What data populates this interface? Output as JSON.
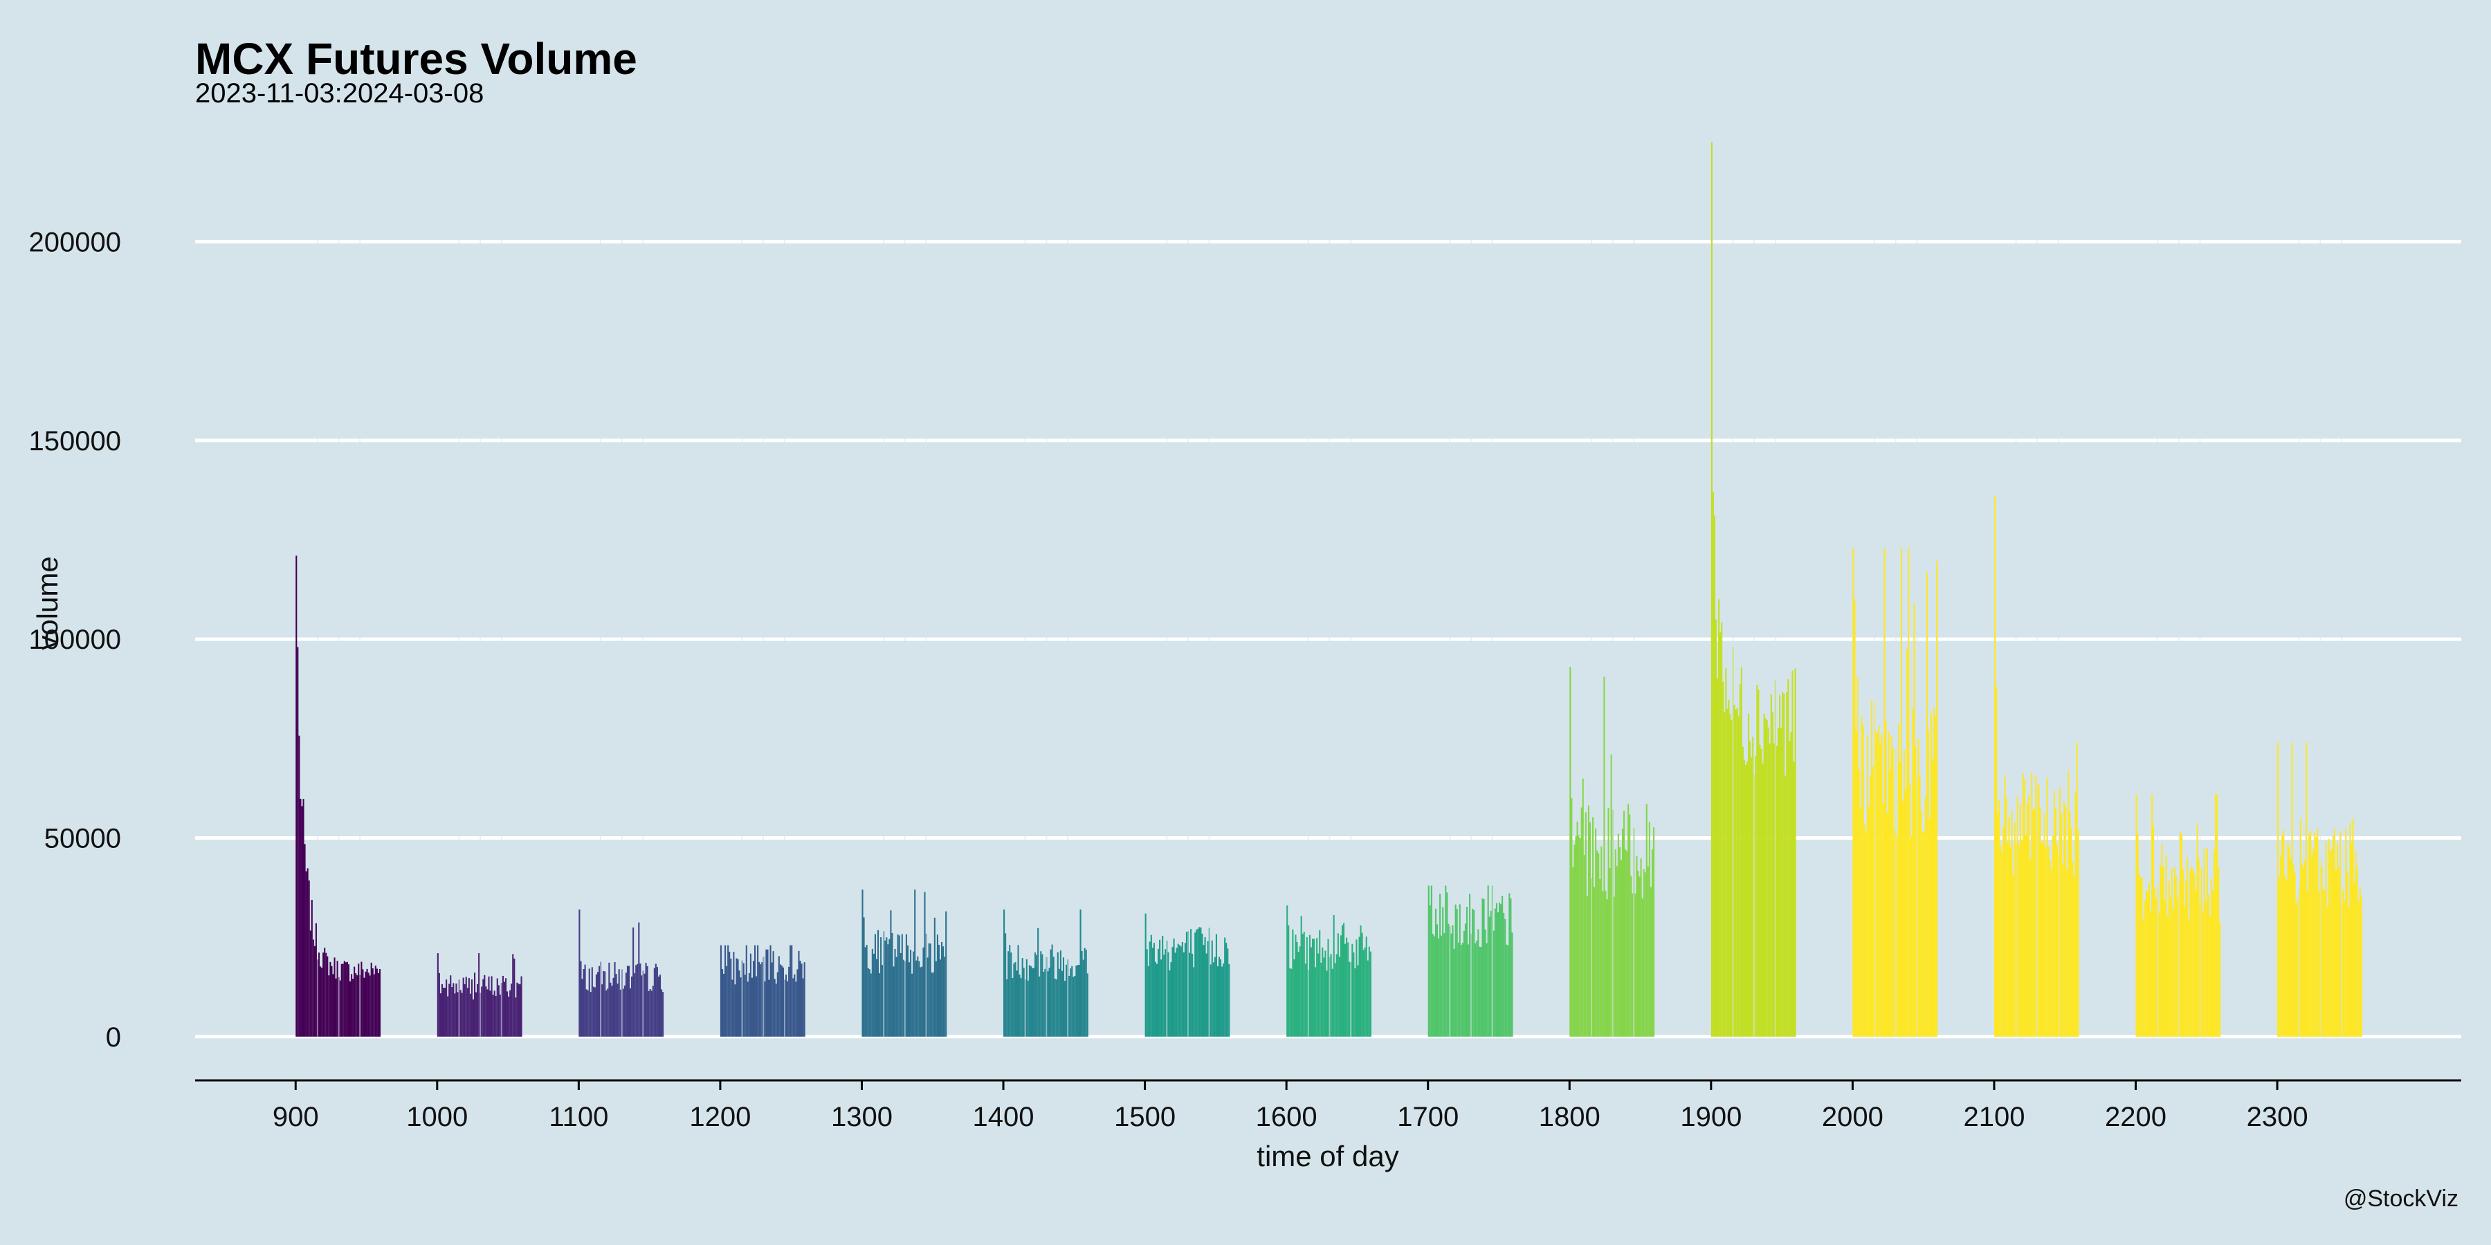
{
  "chart_data": {
    "type": "bar",
    "title": "MCX Futures Volume",
    "subtitle": "2023-11-03:2024-03-08",
    "xlabel": "time of day",
    "ylabel": "volume",
    "caption": "@StockViz",
    "ylim": [
      -11000,
      226000
    ],
    "xlim": [
      829,
      2430
    ],
    "yticks": [
      0,
      50000,
      100000,
      150000,
      200000
    ],
    "xticks": [
      900,
      1000,
      1100,
      1200,
      1300,
      1400,
      1500,
      1600,
      1700,
      1800,
      1900,
      2000,
      2100,
      2200,
      2300
    ],
    "grid": "horizontal",
    "legend": "none",
    "colors": [
      "#440154",
      "#482173",
      "#433e85",
      "#38588c",
      "#2d708e",
      "#25858e",
      "#1e9b8a",
      "#2ab07f",
      "#51c56a",
      "#85d54a",
      "#c2df23",
      "#fde725"
    ],
    "gap_color": "#d5e4eb",
    "sessions": [
      {
        "start": 900,
        "mean": 17000,
        "peak": 121000,
        "second": 98000,
        "decay": true
      },
      {
        "start": 1000,
        "mean": 13000,
        "peak": 21000,
        "second": 16000
      },
      {
        "start": 1100,
        "mean": 15500,
        "peak": 32000,
        "second": 19000
      },
      {
        "start": 1200,
        "mean": 18000,
        "peak": 23000,
        "second": 17000
      },
      {
        "start": 1300,
        "mean": 22000,
        "peak": 37000,
        "second": 30000
      },
      {
        "start": 1400,
        "mean": 19500,
        "peak": 32000,
        "second": 26000
      },
      {
        "start": 1500,
        "mean": 23000,
        "peak": 31000,
        "second": 22000
      },
      {
        "start": 1600,
        "mean": 23000,
        "peak": 33000,
        "second": 28000
      },
      {
        "start": 1700,
        "mean": 30000,
        "peak": 38000,
        "second": 33000
      },
      {
        "start": 1800,
        "mean": 48000,
        "peak": 93000,
        "second": 60000
      },
      {
        "start": 1900,
        "mean": 82000,
        "peak": 225000,
        "second": 137000,
        "decay": true
      },
      {
        "start": 2000,
        "mean": 70000,
        "peak": 123000,
        "second": 110000
      },
      {
        "start": 2100,
        "mean": 55000,
        "peak": 136000,
        "second": 88000
      },
      {
        "start": 2200,
        "mean": 40000,
        "peak": 61000,
        "second": 51000
      },
      {
        "start": 2300,
        "mean": 45000,
        "peak": 74000,
        "second": 40000
      }
    ],
    "session_length_minutes": 60
  }
}
